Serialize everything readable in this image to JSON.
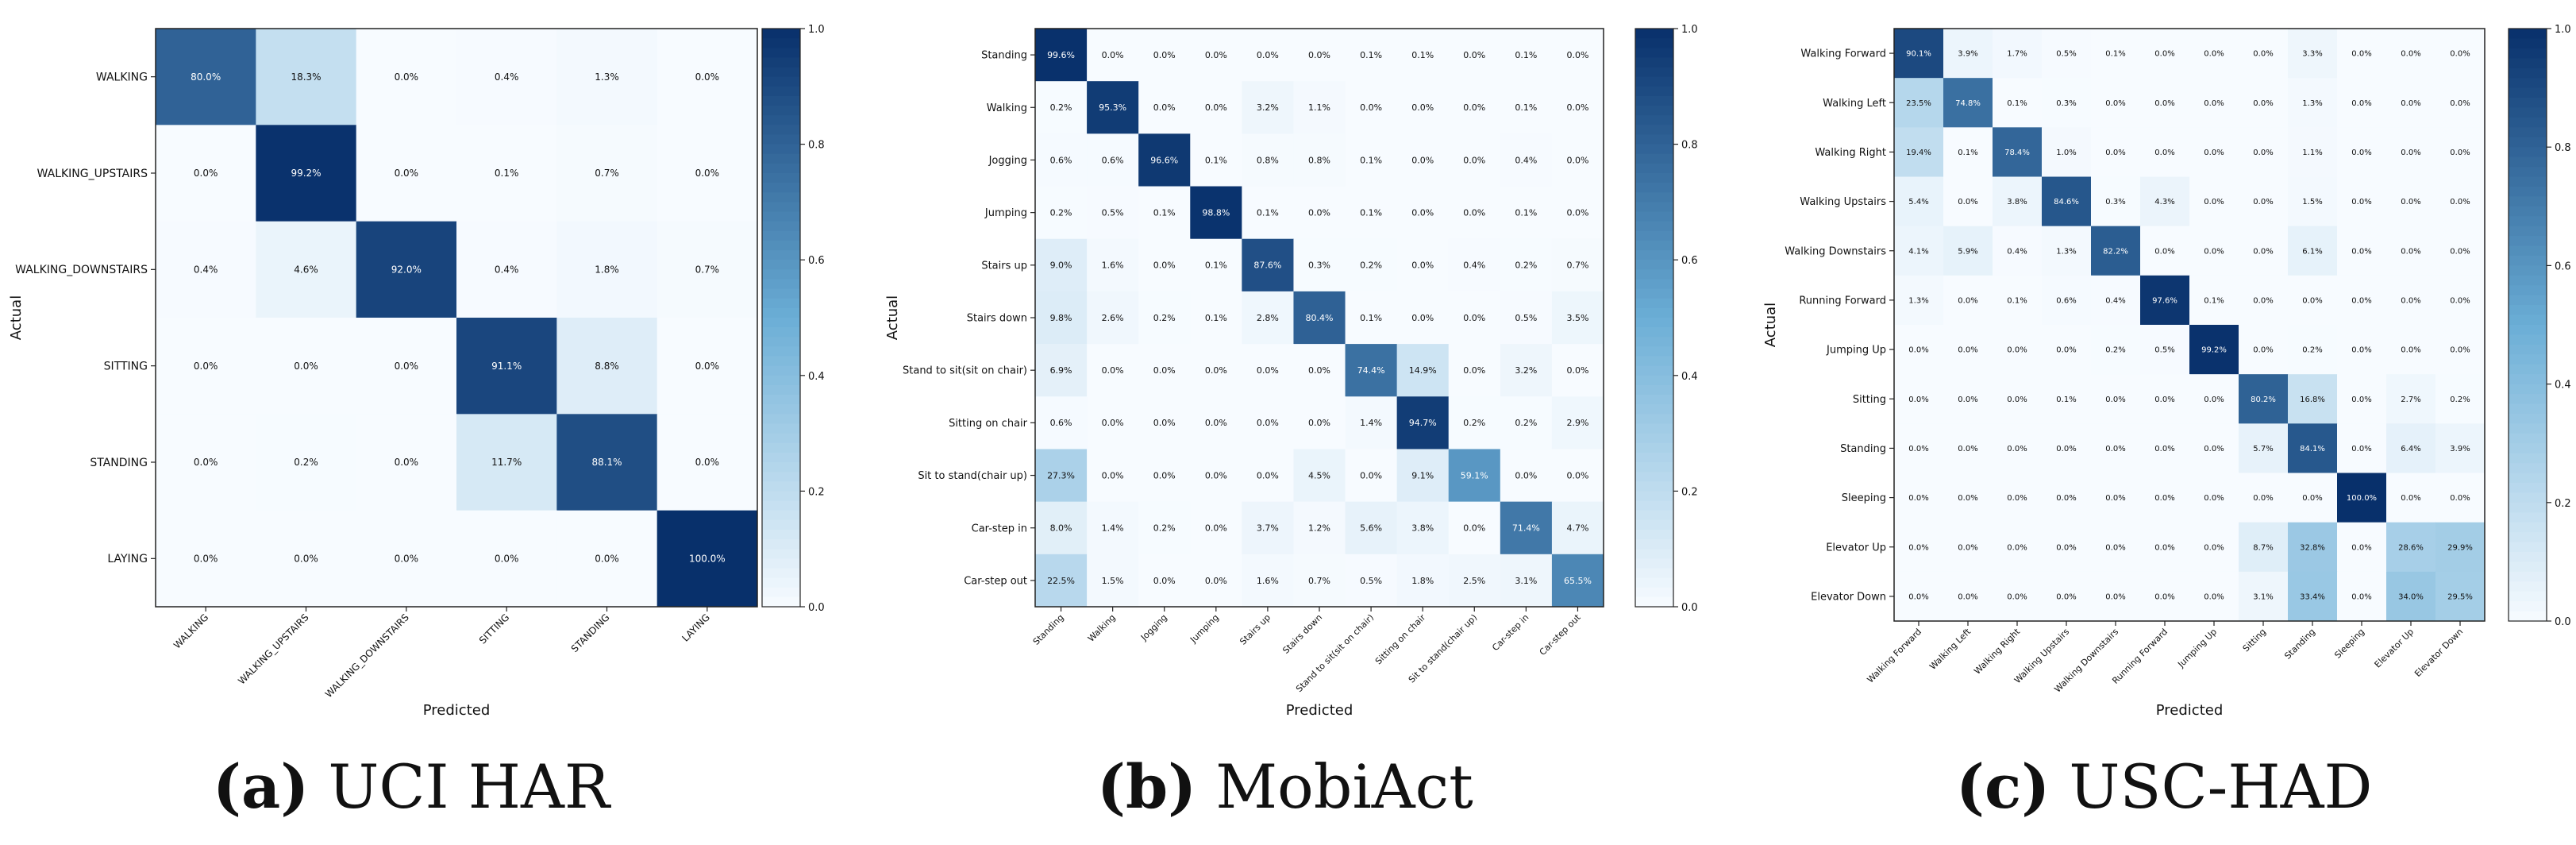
{
  "colorbar_ticks": [
    "0.0",
    "0.2",
    "0.4",
    "0.6",
    "0.8",
    "1.0"
  ],
  "colors": {
    "low": "#f7fbff",
    "mid": "#6baed6",
    "high": "#08306b",
    "text_dark": "#111111",
    "text_light": "#ffffff"
  },
  "chart_data": [
    {
      "type": "heatmap",
      "caption_letter": "(a)",
      "caption_text": "UCI HAR",
      "xlabel": "Predicted",
      "ylabel": "Actual",
      "vrange": [
        0.0,
        1.0
      ],
      "labels": [
        "WALKING",
        "WALKING_UPSTAIRS",
        "WALKING_DOWNSTAIRS",
        "SITTING",
        "STANDING",
        "LAYING"
      ],
      "values": [
        [
          80.0,
          18.3,
          0.0,
          0.4,
          1.3,
          0.0
        ],
        [
          0.0,
          99.2,
          0.0,
          0.1,
          0.7,
          0.0
        ],
        [
          0.4,
          4.6,
          92.0,
          0.4,
          1.8,
          0.7
        ],
        [
          0.0,
          0.0,
          0.0,
          91.1,
          8.8,
          0.0
        ],
        [
          0.0,
          0.2,
          0.0,
          11.7,
          88.1,
          0.0
        ],
        [
          0.0,
          0.0,
          0.0,
          0.0,
          0.0,
          100.0
        ]
      ]
    },
    {
      "type": "heatmap",
      "caption_letter": "(b)",
      "caption_text": "MobiAct",
      "xlabel": "Predicted",
      "ylabel": "Actual",
      "vrange": [
        0.0,
        1.0
      ],
      "labels": [
        "Standing",
        "Walking",
        "Jogging",
        "Jumping",
        "Stairs up",
        "Stairs down",
        "Stand to sit(sit on chair)",
        "Sitting on chair",
        "Sit to stand(chair up)",
        "Car-step in",
        "Car-step out"
      ],
      "values": [
        [
          99.6,
          0.0,
          0.0,
          0.0,
          0.0,
          0.0,
          0.1,
          0.1,
          0.0,
          0.1,
          0.0
        ],
        [
          0.2,
          95.3,
          0.0,
          0.0,
          3.2,
          1.1,
          0.0,
          0.0,
          0.0,
          0.1,
          0.0
        ],
        [
          0.6,
          0.6,
          96.6,
          0.1,
          0.8,
          0.8,
          0.1,
          0.0,
          0.0,
          0.4,
          0.0
        ],
        [
          0.2,
          0.5,
          0.1,
          98.8,
          0.1,
          0.0,
          0.1,
          0.0,
          0.0,
          0.1,
          0.0
        ],
        [
          9.0,
          1.6,
          0.0,
          0.1,
          87.6,
          0.3,
          0.2,
          0.0,
          0.4,
          0.2,
          0.7
        ],
        [
          9.8,
          2.6,
          0.2,
          0.1,
          2.8,
          80.4,
          0.1,
          0.0,
          0.0,
          0.5,
          3.5
        ],
        [
          6.9,
          0.0,
          0.0,
          0.0,
          0.0,
          0.0,
          74.4,
          14.9,
          0.0,
          3.2,
          0.0
        ],
        [
          0.6,
          0.0,
          0.0,
          0.0,
          0.0,
          0.0,
          1.4,
          94.7,
          0.2,
          0.2,
          2.9
        ],
        [
          27.3,
          0.0,
          0.0,
          0.0,
          0.0,
          4.5,
          0.0,
          9.1,
          59.1,
          0.0,
          0.0
        ],
        [
          8.0,
          1.4,
          0.2,
          0.0,
          3.7,
          1.2,
          5.6,
          3.8,
          0.0,
          71.4,
          4.7
        ],
        [
          22.5,
          1.5,
          0.0,
          0.0,
          1.6,
          0.7,
          0.5,
          1.8,
          2.5,
          3.1,
          65.5
        ]
      ]
    },
    {
      "type": "heatmap",
      "caption_letter": "(c)",
      "caption_text": "USC-HAD",
      "xlabel": "Predicted",
      "ylabel": "Actual",
      "vrange": [
        0.0,
        1.0
      ],
      "labels": [
        "Walking Forward",
        "Walking Left",
        "Walking Right",
        "Walking Upstairs",
        "Walking Downstairs",
        "Running Forward",
        "Jumping Up",
        "Sitting",
        "Standing",
        "Sleeping",
        "Elevator Up",
        "Elevator Down"
      ],
      "values": [
        [
          90.1,
          3.9,
          1.7,
          0.5,
          0.1,
          0.0,
          0.0,
          0.0,
          3.3,
          0.0,
          0.0,
          0.0
        ],
        [
          23.5,
          74.8,
          0.1,
          0.3,
          0.0,
          0.0,
          0.0,
          0.0,
          1.3,
          0.0,
          0.0,
          0.0
        ],
        [
          19.4,
          0.1,
          78.4,
          1.0,
          0.0,
          0.0,
          0.0,
          0.0,
          1.1,
          0.0,
          0.0,
          0.0
        ],
        [
          5.4,
          0.0,
          3.8,
          84.6,
          0.3,
          4.3,
          0.0,
          0.0,
          1.5,
          0.0,
          0.0,
          0.0
        ],
        [
          4.1,
          5.9,
          0.4,
          1.3,
          82.2,
          0.0,
          0.0,
          0.0,
          6.1,
          0.0,
          0.0,
          0.0
        ],
        [
          1.3,
          0.0,
          0.1,
          0.6,
          0.4,
          97.6,
          0.1,
          0.0,
          0.0,
          0.0,
          0.0,
          0.0
        ],
        [
          0.0,
          0.0,
          0.0,
          0.0,
          0.2,
          0.5,
          99.2,
          0.0,
          0.2,
          0.0,
          0.0,
          0.0
        ],
        [
          0.0,
          0.0,
          0.0,
          0.1,
          0.0,
          0.0,
          0.0,
          80.2,
          16.8,
          0.0,
          2.7,
          0.2
        ],
        [
          0.0,
          0.0,
          0.0,
          0.0,
          0.0,
          0.0,
          0.0,
          5.7,
          84.1,
          0.0,
          6.4,
          3.9
        ],
        [
          0.0,
          0.0,
          0.0,
          0.0,
          0.0,
          0.0,
          0.0,
          0.0,
          0.0,
          100.0,
          0.0,
          0.0
        ],
        [
          0.0,
          0.0,
          0.0,
          0.0,
          0.0,
          0.0,
          0.0,
          8.7,
          32.8,
          0.0,
          28.6,
          29.9
        ],
        [
          0.0,
          0.0,
          0.0,
          0.0,
          0.0,
          0.0,
          0.0,
          3.1,
          33.4,
          0.0,
          34.0,
          29.5
        ]
      ]
    }
  ]
}
